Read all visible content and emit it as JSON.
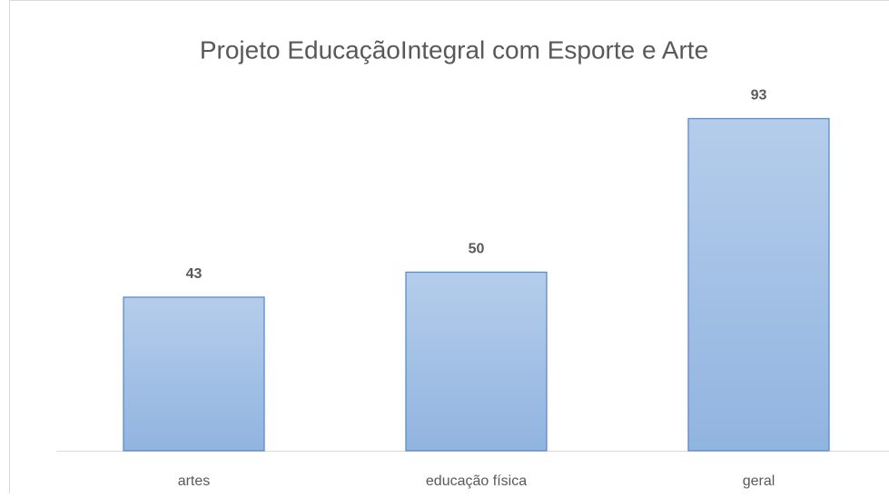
{
  "chart_data": {
    "type": "bar",
    "title": "Projeto EducaçãoIntegral com Esporte e Arte",
    "categories": [
      "artes",
      "educação física",
      "geral"
    ],
    "values": [
      43,
      50,
      93
    ],
    "color": "#9dbde4",
    "ylim": [
      0,
      100
    ]
  }
}
